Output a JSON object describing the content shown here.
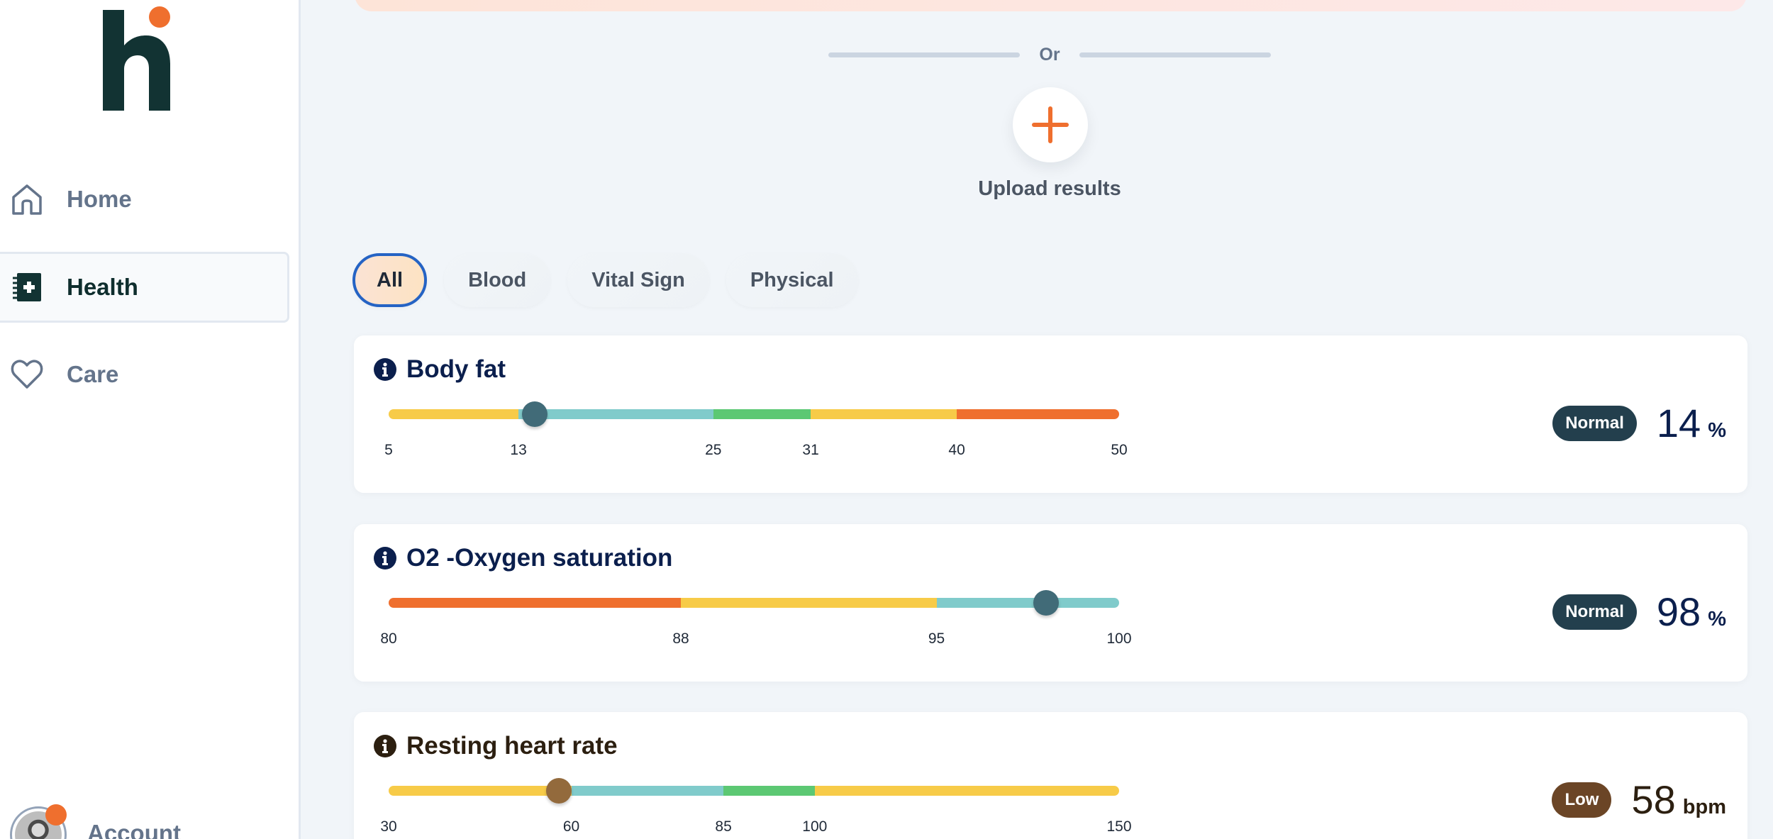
{
  "sidebar": {
    "items": [
      {
        "label": "Home",
        "icon": "home-icon"
      },
      {
        "label": "Health",
        "icon": "health-record-icon",
        "active": true
      },
      {
        "label": "Care",
        "icon": "heart-icon"
      }
    ],
    "account": {
      "label": "Account",
      "notification": true
    }
  },
  "upload": {
    "divider_text": "Or",
    "button_icon": "plus-icon",
    "label": "Upload results"
  },
  "filters": [
    {
      "label": "All",
      "active": true
    },
    {
      "label": "Blood",
      "active": false
    },
    {
      "label": "Vital Sign",
      "active": false
    },
    {
      "label": "Physical",
      "active": false
    }
  ],
  "colors": {
    "yellow": "#f7cb48",
    "teal": "#80cbcb",
    "green": "#5cc873",
    "orange": "#ef6f2e",
    "normal_badge": "#233f4d",
    "low_badge": "#6b4526",
    "normal_thumb": "#416b78",
    "low_thumb": "#936a3c",
    "title_navy": "#0b1f4d",
    "title_brown": "#2c1f10"
  },
  "metrics": [
    {
      "title": "Body fat",
      "min": 5,
      "max": 50,
      "ticks": [
        "5",
        "13",
        "25",
        "31",
        "40",
        "50"
      ],
      "segments": [
        {
          "from": 5,
          "to": 13,
          "color": "yellow"
        },
        {
          "from": 13,
          "to": 25,
          "color": "teal"
        },
        {
          "from": 25,
          "to": 31,
          "color": "green"
        },
        {
          "from": 31,
          "to": 40,
          "color": "yellow"
        },
        {
          "from": 40,
          "to": 50,
          "color": "orange"
        }
      ],
      "value": "14",
      "value_num": 14,
      "unit": "%",
      "status": "Normal"
    },
    {
      "title": "O2 -Oxygen saturation",
      "min": 80,
      "max": 100,
      "ticks": [
        "80",
        "88",
        "95",
        "100"
      ],
      "segments": [
        {
          "from": 80,
          "to": 88,
          "color": "orange"
        },
        {
          "from": 88,
          "to": 95,
          "color": "yellow"
        },
        {
          "from": 95,
          "to": 100,
          "color": "teal"
        }
      ],
      "value": "98",
      "value_num": 98,
      "unit": "%",
      "status": "Normal"
    },
    {
      "title": "Resting heart rate",
      "min": 30,
      "max": 150,
      "ticks": [
        "30",
        "60",
        "85",
        "100",
        "150"
      ],
      "segments": [
        {
          "from": 30,
          "to": 60,
          "color": "yellow"
        },
        {
          "from": 60,
          "to": 85,
          "color": "teal"
        },
        {
          "from": 85,
          "to": 100,
          "color": "green"
        },
        {
          "from": 100,
          "to": 150,
          "color": "yellow"
        }
      ],
      "value": "58",
      "value_num": 58,
      "unit": "bpm",
      "status": "Low"
    }
  ]
}
